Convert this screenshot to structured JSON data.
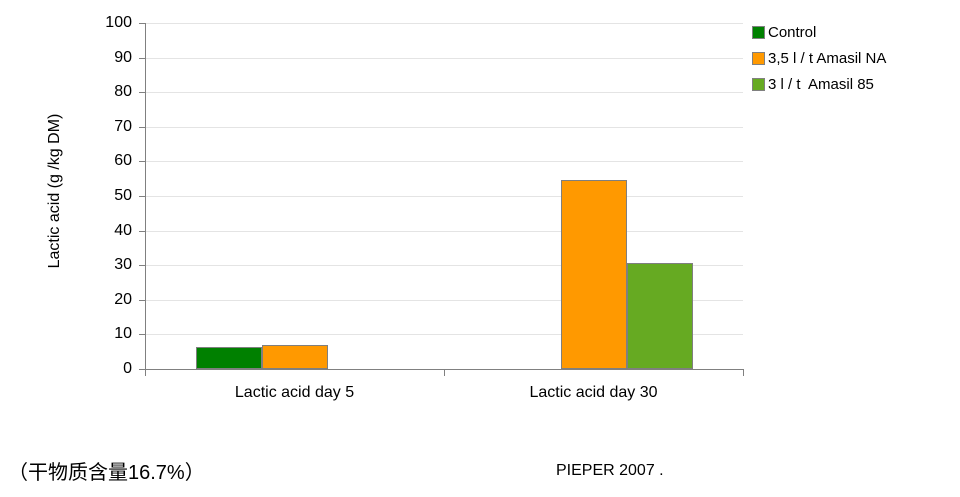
{
  "chart_data": {
    "type": "bar",
    "title": "",
    "xlabel": "",
    "ylabel": "Lactic acid (g /kg DM)",
    "categories": [
      "Lactic acid day 5",
      "Lactic acid day 30"
    ],
    "series": [
      {
        "name": "Control",
        "color": "#008000",
        "values": [
          6.5,
          0
        ]
      },
      {
        "name": "3,5 l / t Amasil NA",
        "color": "#FF9900",
        "values": [
          7,
          54.5
        ]
      },
      {
        "name": "3 l / t  Amasil 85",
        "color": "#66AA22",
        "values": [
          0,
          30.5
        ]
      }
    ],
    "ylim": [
      0,
      100
    ],
    "ytick_step": 10,
    "grid": true,
    "legend_position": "top-right"
  },
  "colors": {
    "axis": "#808080",
    "gridline": "#E4E4E4",
    "bar_border": "#7F7F7F",
    "legend_swatch_border": "#808080",
    "text": "#000000"
  },
  "captions": {
    "dry_matter": "（干物质含量16.7%）",
    "source": "PIEPER 2007 ."
  }
}
